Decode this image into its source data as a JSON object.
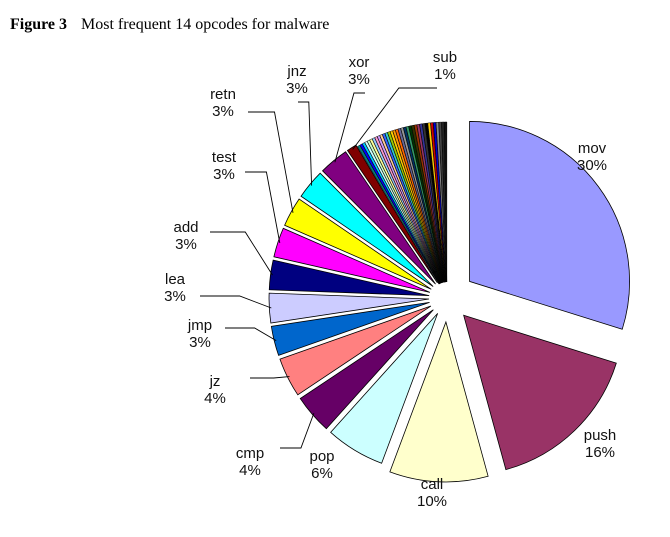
{
  "caption": {
    "figure_label": "Figure 3",
    "title": "Most frequent 14 opcodes for malware"
  },
  "chart_data": {
    "type": "pie",
    "title": "Most frequent 14 opcodes for malware",
    "slices": [
      {
        "name": "mov",
        "value": 30,
        "label": "30%",
        "color": "#9999ff"
      },
      {
        "name": "push",
        "value": 16,
        "label": "16%",
        "color": "#993366"
      },
      {
        "name": "call",
        "value": 10,
        "label": "10%",
        "color": "#ffffcc"
      },
      {
        "name": "pop",
        "value": 6,
        "label": "6%",
        "color": "#ccffff"
      },
      {
        "name": "cmp",
        "value": 4,
        "label": "4%",
        "color": "#660066"
      },
      {
        "name": "jz",
        "value": 4,
        "label": "4%",
        "color": "#ff8080"
      },
      {
        "name": "jmp",
        "value": 3,
        "label": "3%",
        "color": "#0066cc"
      },
      {
        "name": "lea",
        "value": 3,
        "label": "3%",
        "color": "#ccccff"
      },
      {
        "name": "add",
        "value": 3,
        "label": "3%",
        "color": "#000080"
      },
      {
        "name": "test",
        "value": 3,
        "label": "3%",
        "color": "#ff00ff"
      },
      {
        "name": "retn",
        "value": 3,
        "label": "3%",
        "color": "#ffff00"
      },
      {
        "name": "jnz",
        "value": 3,
        "label": "3%",
        "color": "#00ffff"
      },
      {
        "name": "xor",
        "value": 3,
        "label": "3%",
        "color": "#800080"
      },
      {
        "name": "sub",
        "value": 1,
        "label": "1%",
        "color": "#800000"
      }
    ],
    "other_small_slice_colors": [
      "#008080",
      "#0000ff",
      "#00ccff",
      "#ccffff",
      "#ccffcc",
      "#ffff99",
      "#99ccff",
      "#ff99cc",
      "#cc99ff",
      "#ffcc99",
      "#3366ff",
      "#33cccc",
      "#99cc00",
      "#ffcc00",
      "#ff9900",
      "#ff6600",
      "#666699",
      "#969696",
      "#003366",
      "#339966",
      "#003300",
      "#333300",
      "#993300",
      "#993366",
      "#333399",
      "#333333",
      "#000000",
      "#ffcc00",
      "#cc0000",
      "#0000cc",
      "#888888",
      "#444444",
      "#222222",
      "#111111"
    ],
    "legend": "none"
  }
}
